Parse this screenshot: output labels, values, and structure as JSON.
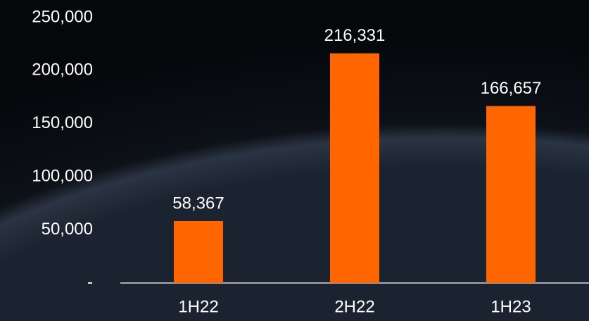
{
  "chart_data": {
    "type": "bar",
    "categories": [
      "1H22",
      "2H22",
      "1H23"
    ],
    "values": [
      58367,
      216331,
      166657
    ],
    "value_labels": [
      "58,367",
      "216,331",
      "166,657"
    ],
    "color": "#ff6600",
    "ylim": [
      0,
      250000
    ],
    "yticks": [
      {
        "value": 0,
        "label": "-"
      },
      {
        "value": 50000,
        "label": "50,000"
      },
      {
        "value": 100000,
        "label": "100,000"
      },
      {
        "value": 150000,
        "label": "150,000"
      },
      {
        "value": 200000,
        "label": "200,000"
      },
      {
        "value": 250000,
        "label": "250,000"
      }
    ],
    "grid": false
  }
}
